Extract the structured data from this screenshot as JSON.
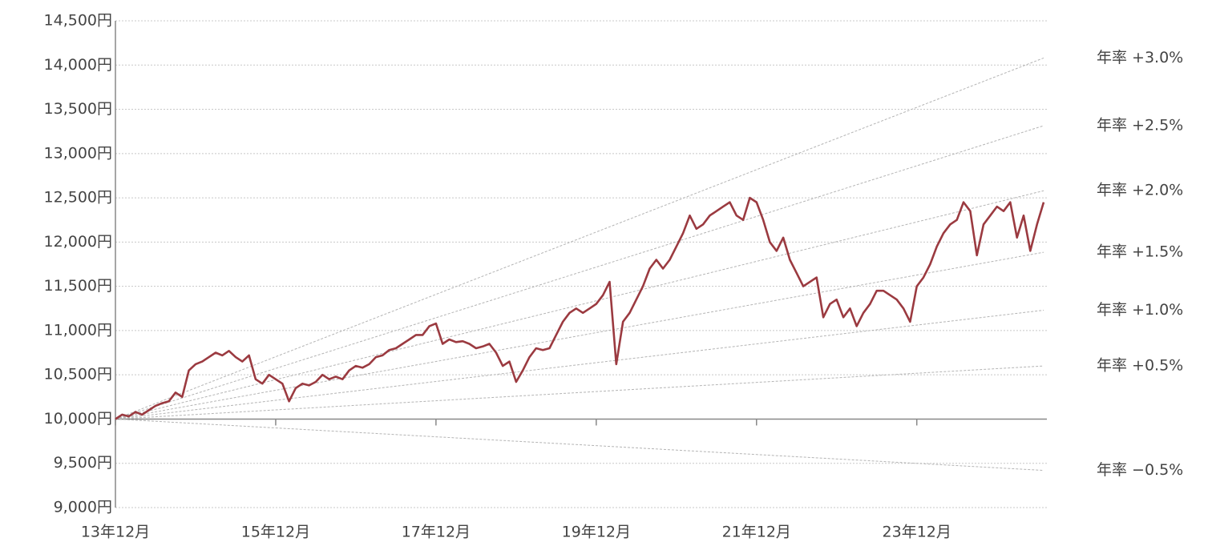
{
  "chart_data": {
    "type": "line",
    "categories": [
      "13年12月",
      null,
      null,
      null,
      null,
      null,
      null,
      null,
      null,
      null,
      null,
      null,
      null,
      null,
      null,
      null,
      null,
      null,
      null,
      null,
      null,
      null,
      null,
      null,
      "15年12月",
      null,
      null,
      null,
      null,
      null,
      null,
      null,
      null,
      null,
      null,
      null,
      null,
      null,
      null,
      null,
      null,
      null,
      null,
      null,
      null,
      null,
      null,
      null,
      "17年12月",
      null,
      null,
      null,
      null,
      null,
      null,
      null,
      null,
      null,
      null,
      null,
      null,
      null,
      null,
      null,
      null,
      null,
      null,
      null,
      null,
      null,
      null,
      null,
      "19年12月",
      null,
      null,
      null,
      null,
      null,
      null,
      null,
      null,
      null,
      null,
      null,
      null,
      null,
      null,
      null,
      null,
      null,
      null,
      null,
      null,
      null,
      null,
      null,
      "21年12月",
      null,
      null,
      null,
      null,
      null,
      null,
      null,
      null,
      null,
      null,
      null,
      null,
      null,
      null,
      null,
      null,
      null,
      null,
      null,
      null,
      null,
      null,
      null,
      "23年12月",
      null,
      null,
      null,
      null,
      null,
      null,
      null,
      null,
      null,
      null,
      null,
      null,
      null,
      null,
      null,
      null,
      null,
      null,
      null
    ],
    "series": [
      {
        "color": "#9b3a40",
        "values": [
          10000,
          10050,
          10030,
          10080,
          10050,
          10100,
          10150,
          10180,
          10200,
          10300,
          10250,
          10550,
          10620,
          10650,
          10700,
          10750,
          10720,
          10770,
          10700,
          10650,
          10720,
          10450,
          10400,
          10500,
          10450,
          10400,
          10200,
          10350,
          10400,
          10380,
          10420,
          10500,
          10450,
          10480,
          10450,
          10550,
          10600,
          10580,
          10620,
          10700,
          10720,
          10780,
          10800,
          10850,
          10900,
          10950,
          10950,
          11050,
          11080,
          10850,
          10900,
          10870,
          10880,
          10850,
          10800,
          10820,
          10850,
          10750,
          10600,
          10650,
          10420,
          10550,
          10700,
          10800,
          10780,
          10800,
          10950,
          11100,
          11200,
          11250,
          11200,
          11250,
          11300,
          11400,
          11550,
          10620,
          11100,
          11200,
          11350,
          11500,
          11700,
          11800,
          11700,
          11800,
          11950,
          12100,
          12300,
          12150,
          12200,
          12300,
          12350,
          12400,
          12450,
          12300,
          12250,
          12500,
          12450,
          12250,
          12000,
          11900,
          12050,
          11800,
          11650,
          11500,
          11550,
          11600,
          11150,
          11300,
          11350,
          11150,
          11250,
          11050,
          11200,
          11300,
          11450,
          11450,
          11400,
          11350,
          11250,
          11100,
          11500,
          11600,
          11750,
          11950,
          12100,
          12200,
          12250,
          12450,
          12350,
          11850,
          12200,
          12300,
          12400,
          12350,
          12450,
          12050,
          12300,
          11900,
          12200,
          12450
        ]
      }
    ],
    "reference_lines": {
      "base": 10000,
      "color": "#b4b4b4",
      "lines": [
        {
          "label": "年率 +3.0%",
          "end": 14080
        },
        {
          "label": "年率 +2.5%",
          "end": 13315
        },
        {
          "label": "年率 +2.0%",
          "end": 12580
        },
        {
          "label": "年率 +1.5%",
          "end": 11885
        },
        {
          "label": "年率 +1.0%",
          "end": 11230
        },
        {
          "label": "年率 +0.5%",
          "end": 10600
        },
        {
          "label": "年率 −0.5%",
          "end": 9420
        }
      ]
    },
    "ylim": [
      9000,
      14500
    ],
    "yticks": [
      {
        "value": 9000,
        "label": "9,000円"
      },
      {
        "value": 9500,
        "label": "9,500円"
      },
      {
        "value": 10000,
        "label": "10,000円"
      },
      {
        "value": 10500,
        "label": "10,500円"
      },
      {
        "value": 11000,
        "label": "11,000円"
      },
      {
        "value": 11500,
        "label": "11,500円"
      },
      {
        "value": 12000,
        "label": "12,000円"
      },
      {
        "value": 12500,
        "label": "12,500円"
      },
      {
        "value": 13000,
        "label": "13,000円"
      },
      {
        "value": 13500,
        "label": "13,500円"
      },
      {
        "value": 14000,
        "label": "14,000円"
      },
      {
        "value": 14500,
        "label": "14,500円"
      }
    ],
    "grid": true
  }
}
